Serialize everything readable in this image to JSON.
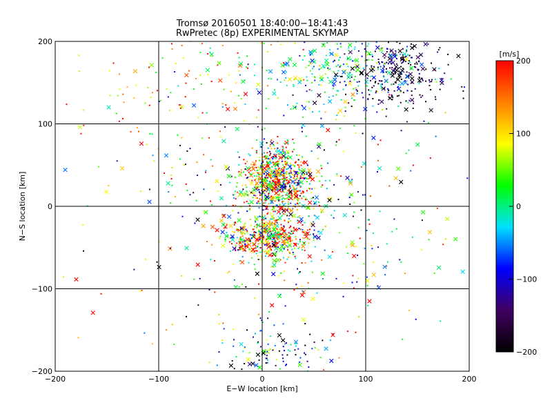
{
  "chart_data": {
    "type": "scatter",
    "title": "Tromsø 20160501 18:40:00−18:41:43",
    "subtitle": "RwPretec (8p) EXPERIMENTAL SKYMAP",
    "xlabel": "E−W location [km]",
    "ylabel": "N−S location [km]",
    "xlim": [
      -200,
      200
    ],
    "ylim": [
      -200,
      200
    ],
    "xticks": [
      -200,
      -100,
      0,
      100,
      200
    ],
    "yticks": [
      -200,
      -100,
      0,
      100,
      200
    ],
    "xtick_labels": [
      "−200",
      "−100",
      "0",
      "100",
      "200"
    ],
    "ytick_labels": [
      "−200",
      "−100",
      "0",
      "100",
      "200"
    ],
    "grid": true,
    "markers": [
      "dot",
      "cross"
    ],
    "clusters": [
      {
        "x": 15,
        "y": 30,
        "spread_x": 18,
        "spread_y": 18,
        "count": 700,
        "vmean": 80,
        "vspread": 130
      },
      {
        "x": 5,
        "y": -38,
        "spread_x": 20,
        "spread_y": 12,
        "count": 450,
        "vmean": 90,
        "vspread": 130
      },
      {
        "x": 130,
        "y": 160,
        "spread_x": 25,
        "spread_y": 22,
        "count": 260,
        "vmean": -170,
        "vspread": 50
      },
      {
        "x": 70,
        "y": 165,
        "spread_x": 40,
        "spread_y": 25,
        "count": 260,
        "vmean": -10,
        "vspread": 60
      },
      {
        "x": 10,
        "y": -175,
        "spread_x": 25,
        "spread_y": 18,
        "count": 110,
        "vmean": -80,
        "vspread": 110
      },
      {
        "x": 30,
        "y": 0,
        "spread_x": 60,
        "spread_y": 60,
        "count": 350,
        "vmean": 20,
        "vspread": 110
      },
      {
        "x": -80,
        "y": 150,
        "spread_x": 60,
        "spread_y": 40,
        "count": 110,
        "vmean": 120,
        "vspread": 90
      },
      {
        "x": 0,
        "y": 0,
        "spread_x": 130,
        "spread_y": 130,
        "count": 250,
        "vmean": 30,
        "vspread": 140
      }
    ],
    "colorbar": {
      "label": "[m/s]",
      "min": -200,
      "max": 200,
      "ticks": [
        200,
        100,
        0,
        -100,
        -200
      ],
      "tick_labels": [
        "200",
        "100",
        "0",
        "−100",
        "−200"
      ],
      "stops": [
        "#000000",
        "#400060",
        "#0000ff",
        "#00e0ff",
        "#00ff00",
        "#ffff00",
        "#ff8000",
        "#ff0000"
      ]
    }
  }
}
